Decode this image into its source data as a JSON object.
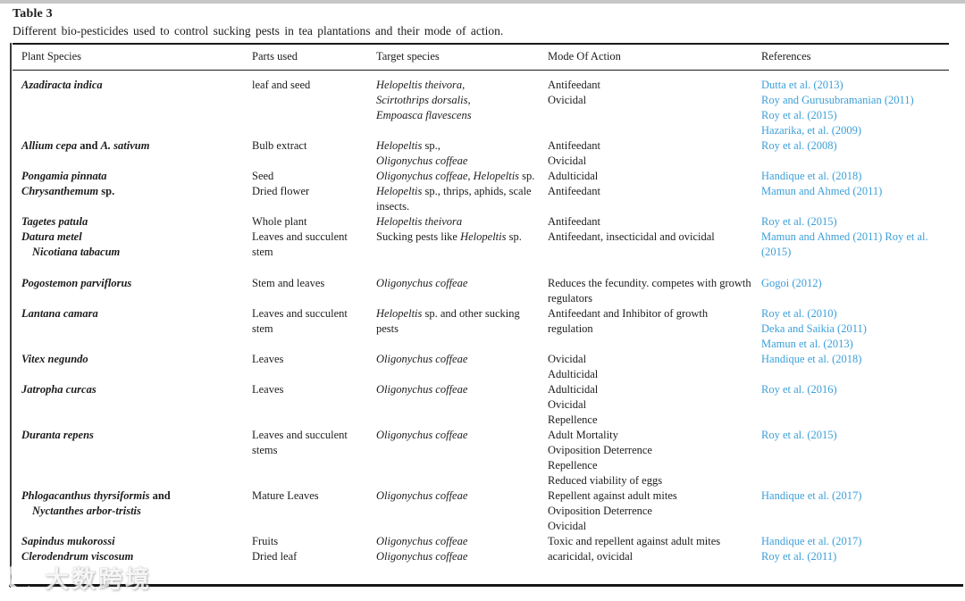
{
  "page": {
    "title": "Table 3",
    "caption": "Different bio-pesticides used to control sucking pests in tea plantations and their mode of action."
  },
  "table": {
    "columns": [
      "Plant Species",
      "Parts used",
      "Target species",
      "Mode Of Action",
      "References"
    ],
    "rows": [
      {
        "plant": [
          "*Azadiracta indica*"
        ],
        "parts": [
          "leaf and seed"
        ],
        "target": [
          "*Helopeltis theivora,*",
          "*Scirtothrips dorsalis,*",
          "*Empoasca flavescens*"
        ],
        "mode": [
          "Antifeedant",
          "Ovicidal"
        ],
        "refs": [
          "Dutta et al. (2013)",
          "Roy and Gurusubramanian (2011)",
          "Roy et al. (2015)",
          "Hazarika, et al. (2009)"
        ]
      },
      {
        "plant": [
          "*Allium cepa* and *A. sativum*"
        ],
        "parts": [
          "Bulb extract"
        ],
        "target": [
          "*Helopeltis* sp.,",
          "*Oligonychus coffeae*"
        ],
        "mode": [
          "Antifeedant",
          "Ovicidal"
        ],
        "refs": [
          "Roy et al. (2008)"
        ]
      },
      {
        "plant": [
          "*Pongamia pinnata*"
        ],
        "parts": [
          "Seed"
        ],
        "target": [
          "*Oligonychus coffeae*, *Helopeltis* sp."
        ],
        "mode": [
          "Adulticidal"
        ],
        "refs": [
          "Handique et al. (2018)"
        ]
      },
      {
        "plant": [
          "*Chrysanthemum* sp."
        ],
        "parts": [
          "Dried flower"
        ],
        "target": [
          "*Helopeltis* sp., thrips, aphids, scale insects."
        ],
        "mode": [
          "Antifeedant"
        ],
        "refs": [
          "Mamun and Ahmed (2011)"
        ]
      },
      {
        "plant": [
          "*Tagetes patula*"
        ],
        "parts": [
          "Whole plant"
        ],
        "target": [
          "*Helopeltis theivora*"
        ],
        "mode": [
          "Antifeedant"
        ],
        "refs": [
          "Roy et al. (2015)"
        ]
      },
      {
        "plant": [
          "*Datura metel*",
          "  *Nicotiana tabacum*"
        ],
        "parts": [
          "Leaves and succulent stem"
        ],
        "target": [
          "Sucking pests like *Helopeltis* sp."
        ],
        "mode": [
          "Antifeedant, insecticidal and ovicidal"
        ],
        "refs": [
          "Mamun and Ahmed (2011) Roy et al. (2015)"
        ],
        "spacer_after": true
      },
      {
        "plant": [
          "*Pogostemon parviflorus*"
        ],
        "parts": [
          "Stem and leaves"
        ],
        "target": [
          "*Oligonychus coffeae*"
        ],
        "mode": [
          "Reduces the fecundity. competes with growth regulators"
        ],
        "refs": [
          "Gogoi (2012)"
        ]
      },
      {
        "plant": [
          "*Lantana camara*"
        ],
        "parts": [
          "Leaves and succulent stem"
        ],
        "target": [
          "*Helopeltis* sp. and other sucking pests"
        ],
        "mode": [
          "Antifeedant and Inhibitor of growth regulation"
        ],
        "refs": [
          "Roy et al. (2010)",
          "Deka and Saikia (2011)",
          "Mamun et al. (2013)"
        ]
      },
      {
        "plant": [
          "*Vitex negundo*"
        ],
        "parts": [
          "Leaves"
        ],
        "target": [
          "*Oligonychus coffeae*"
        ],
        "mode": [
          "Ovicidal",
          "Adulticidal"
        ],
        "refs": [
          "Handique et al. (2018)"
        ]
      },
      {
        "plant": [
          "*Jatropha curcas*"
        ],
        "parts": [
          "Leaves"
        ],
        "target": [
          "*Oligonychus coffeae*"
        ],
        "mode": [
          "Adulticidal",
          "Ovicidal",
          "Repellence"
        ],
        "refs": [
          "Roy et al. (2016)"
        ]
      },
      {
        "plant": [
          "*Duranta repens*"
        ],
        "parts": [
          "Leaves and succulent stems"
        ],
        "target": [
          "*Oligonychus coffeae*"
        ],
        "mode": [
          "Adult Mortality",
          "Oviposition Deterrence",
          "Repellence",
          "Reduced viability of eggs"
        ],
        "refs": [
          "Roy et al. (2015)"
        ]
      },
      {
        "plant": [
          "*Phlogacanthus thyrsiformis* and",
          "  *Nyctanthes arbor-tristis*"
        ],
        "parts": [
          "Mature Leaves"
        ],
        "target": [
          "*Oligonychus coffeae*"
        ],
        "mode": [
          "Repellent against adult mites",
          "Oviposition Deterrence",
          "Ovicidal"
        ],
        "refs": [
          "Handique et al. (2017)"
        ]
      },
      {
        "plant": [
          "*Sapindus mukorossi*"
        ],
        "parts": [
          "Fruits"
        ],
        "target": [
          "*Oligonychus coffeae*"
        ],
        "mode": [
          "Toxic and repellent against adult mites"
        ],
        "refs": [
          "Handique et al. (2017)"
        ]
      },
      {
        "plant": [
          "*Clerodendrum viscosum*"
        ],
        "parts": [
          "Dried leaf"
        ],
        "target": [
          "*Oligonychus coffeae*"
        ],
        "mode": [
          "acaricidal, ovicidal"
        ],
        "refs": [
          "Roy et al. (2011)"
        ]
      }
    ]
  },
  "watermark": {
    "text": "大数跨境",
    "logo_icon": "dashu-kuajing-logo"
  },
  "colors": {
    "link": "#3C9FD8",
    "rule": "#1a1a1a",
    "text": "#1c1c1c",
    "scan_edge": "#c6c6c6"
  }
}
